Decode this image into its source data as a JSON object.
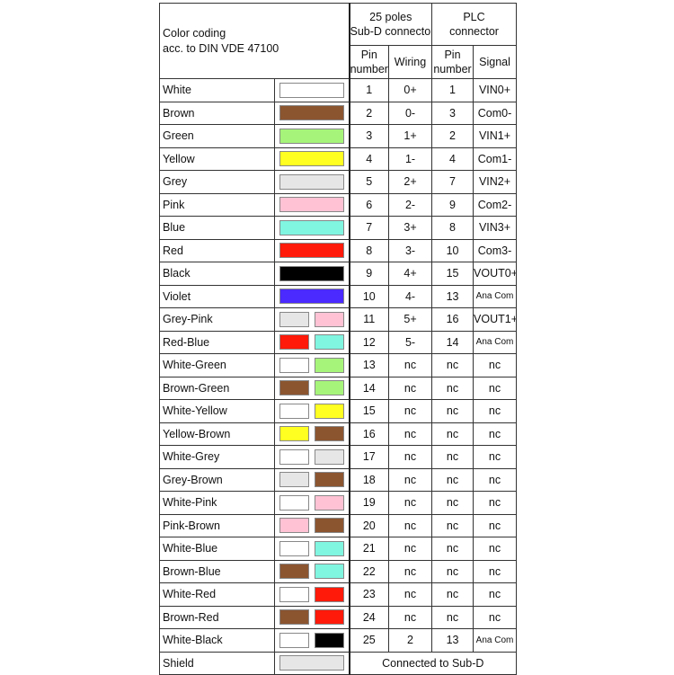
{
  "header": {
    "color_coding": "Color coding",
    "color_standard": "acc. to DIN VDE 47100",
    "subd_title_1": "25 poles",
    "subd_title_2": "Sub-D connector",
    "plc_title_1": "PLC",
    "plc_title_2": "connector",
    "pin_1": "Pin",
    "pin_2": "number",
    "wiring": "Wiring",
    "plc_pin_1": "Pin",
    "plc_pin_2": "number",
    "signal": "Signal"
  },
  "colors": {
    "White": "#ffffff",
    "Brown": "#8b5530",
    "Green": "#a6f57a",
    "Yellow": "#ffff22",
    "Grey": "#e6e6e6",
    "Pink": "#ffc2d4",
    "Blue": "#80f5e0",
    "Red": "#ff1a0a",
    "Black": "#000000",
    "Violet": "#4a2aff"
  },
  "rows": [
    {
      "name": "White",
      "swatches": [
        "White"
      ],
      "pin": "1",
      "wiring": "0+",
      "plc_pin": "1",
      "signal": "VIN0+"
    },
    {
      "name": "Brown",
      "swatches": [
        "Brown"
      ],
      "pin": "2",
      "wiring": "0-",
      "plc_pin": "3",
      "signal": "Com0-"
    },
    {
      "name": "Green",
      "swatches": [
        "Green"
      ],
      "pin": "3",
      "wiring": "1+",
      "plc_pin": "2",
      "signal": "VIN1+"
    },
    {
      "name": "Yellow",
      "swatches": [
        "Yellow"
      ],
      "pin": "4",
      "wiring": "1-",
      "plc_pin": "4",
      "signal": "Com1-"
    },
    {
      "name": "Grey",
      "swatches": [
        "Grey"
      ],
      "pin": "5",
      "wiring": "2+",
      "plc_pin": "7",
      "signal": "VIN2+"
    },
    {
      "name": "Pink",
      "swatches": [
        "Pink"
      ],
      "pin": "6",
      "wiring": "2-",
      "plc_pin": "9",
      "signal": "Com2-"
    },
    {
      "name": "Blue",
      "swatches": [
        "Blue"
      ],
      "pin": "7",
      "wiring": "3+",
      "plc_pin": "8",
      "signal": "VIN3+"
    },
    {
      "name": "Red",
      "swatches": [
        "Red"
      ],
      "pin": "8",
      "wiring": "3-",
      "plc_pin": "10",
      "signal": "Com3-"
    },
    {
      "name": "Black",
      "swatches": [
        "Black"
      ],
      "pin": "9",
      "wiring": "4+",
      "plc_pin": "15",
      "signal": "VOUT0+"
    },
    {
      "name": "Violet",
      "swatches": [
        "Violet"
      ],
      "pin": "10",
      "wiring": "4-",
      "plc_pin": "13",
      "signal": "Ana Com"
    },
    {
      "name": "Grey-Pink",
      "swatches": [
        "Grey",
        "Pink"
      ],
      "pin": "11",
      "wiring": "5+",
      "plc_pin": "16",
      "signal": "VOUT1+"
    },
    {
      "name": "Red-Blue",
      "swatches": [
        "Red",
        "Blue"
      ],
      "pin": "12",
      "wiring": "5-",
      "plc_pin": "14",
      "signal": "Ana Com"
    },
    {
      "name": "White-Green",
      "swatches": [
        "White",
        "Green"
      ],
      "pin": "13",
      "wiring": "nc",
      "plc_pin": "nc",
      "signal": "nc"
    },
    {
      "name": "Brown-Green",
      "swatches": [
        "Brown",
        "Green"
      ],
      "pin": "14",
      "wiring": "nc",
      "plc_pin": "nc",
      "signal": "nc"
    },
    {
      "name": "White-Yellow",
      "swatches": [
        "White",
        "Yellow"
      ],
      "pin": "15",
      "wiring": "nc",
      "plc_pin": "nc",
      "signal": "nc"
    },
    {
      "name": "Yellow-Brown",
      "swatches": [
        "Yellow",
        "Brown"
      ],
      "pin": "16",
      "wiring": "nc",
      "plc_pin": "nc",
      "signal": "nc"
    },
    {
      "name": "White-Grey",
      "swatches": [
        "White",
        "Grey"
      ],
      "pin": "17",
      "wiring": "nc",
      "plc_pin": "nc",
      "signal": "nc"
    },
    {
      "name": "Grey-Brown",
      "swatches": [
        "Grey",
        "Brown"
      ],
      "pin": "18",
      "wiring": "nc",
      "plc_pin": "nc",
      "signal": "nc"
    },
    {
      "name": "White-Pink",
      "swatches": [
        "White",
        "Pink"
      ],
      "pin": "19",
      "wiring": "nc",
      "plc_pin": "nc",
      "signal": "nc"
    },
    {
      "name": "Pink-Brown",
      "swatches": [
        "Pink",
        "Brown"
      ],
      "pin": "20",
      "wiring": "nc",
      "plc_pin": "nc",
      "signal": "nc"
    },
    {
      "name": "White-Blue",
      "swatches": [
        "White",
        "Blue"
      ],
      "pin": "21",
      "wiring": "nc",
      "plc_pin": "nc",
      "signal": "nc"
    },
    {
      "name": "Brown-Blue",
      "swatches": [
        "Brown",
        "Blue"
      ],
      "pin": "22",
      "wiring": "nc",
      "plc_pin": "nc",
      "signal": "nc"
    },
    {
      "name": "White-Red",
      "swatches": [
        "White",
        "Red"
      ],
      "pin": "23",
      "wiring": "nc",
      "plc_pin": "nc",
      "signal": "nc"
    },
    {
      "name": "Brown-Red",
      "swatches": [
        "Brown",
        "Red"
      ],
      "pin": "24",
      "wiring": "nc",
      "plc_pin": "nc",
      "signal": "nc"
    },
    {
      "name": "White-Black",
      "swatches": [
        "White",
        "Black"
      ],
      "pin": "25",
      "wiring": "2",
      "plc_pin": "13",
      "signal": "Ana Com"
    }
  ],
  "shield": {
    "name": "Shield",
    "swatch": "Grey",
    "note": "Connected to Sub-D"
  }
}
